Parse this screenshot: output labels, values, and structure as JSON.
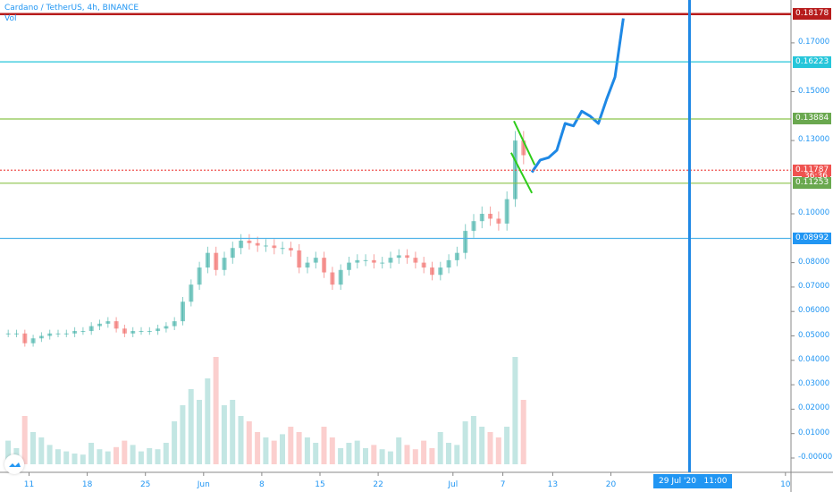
{
  "header": {
    "symbol_title": "Cardano / TetherUS, 4h, BINANCE",
    "volume_label": "Vol"
  },
  "colors": {
    "up": "#26a69a",
    "down": "#ef5350",
    "accent": "#2196f3",
    "resistance_top": "#b71c1c",
    "cyan_line": "#26c6da",
    "green_line": "#8bc34a",
    "support_blue": "#4fb3e8",
    "flag": "#2ecc1a",
    "drawn_path": "#1e88e5"
  },
  "chart_data": {
    "type": "candlestick",
    "title": "Cardano / TetherUS, 4h, BINANCE",
    "start_date": "2020-05-08",
    "daily_close": [
      0.051,
      0.051,
      0.047,
      0.049,
      0.05,
      0.051,
      0.051,
      0.051,
      0.052,
      0.052,
      0.054,
      0.055,
      0.056,
      0.053,
      0.051,
      0.052,
      0.052,
      0.052,
      0.053,
      0.054,
      0.056,
      0.064,
      0.071,
      0.078,
      0.084,
      0.077,
      0.082,
      0.086,
      0.089,
      0.088,
      0.087,
      0.087,
      0.086,
      0.086,
      0.085,
      0.078,
      0.08,
      0.082,
      0.076,
      0.071,
      0.077,
      0.08,
      0.081,
      0.081,
      0.08,
      0.08,
      0.082,
      0.083,
      0.082,
      0.08,
      0.078,
      0.075,
      0.078,
      0.081,
      0.084,
      0.093,
      0.097,
      0.1,
      0.098,
      0.096,
      0.106,
      0.13,
      0.124
    ],
    "drawn_path_start": "2020-07-10",
    "drawn_path": [
      0.117,
      0.122,
      0.123,
      0.126,
      0.137,
      0.136,
      0.142,
      0.14,
      0.137,
      0.147,
      0.156,
      0.18
    ],
    "volume_relative": [
      22,
      15,
      45,
      30,
      25,
      18,
      14,
      12,
      10,
      9,
      20,
      14,
      12,
      16,
      22,
      18,
      12,
      15,
      14,
      20,
      40,
      55,
      70,
      60,
      80,
      100,
      55,
      60,
      45,
      40,
      30,
      25,
      22,
      28,
      35,
      30,
      25,
      20,
      35,
      25,
      15,
      20,
      22,
      15,
      18,
      14,
      12,
      25,
      18,
      14,
      22,
      15,
      30,
      20,
      18,
      40,
      45,
      35,
      30,
      25,
      35,
      100,
      60
    ],
    "hlines": [
      {
        "price": 0.18178,
        "label": "0.18178",
        "style": "solid",
        "color": "#b71c1c",
        "badge": "#b71c1c"
      },
      {
        "price": 0.16223,
        "label": "0.16223",
        "style": "solid",
        "color": "#26c6da",
        "badge": "#26c6da"
      },
      {
        "price": 0.13884,
        "label": "0.13884",
        "style": "solid",
        "color": "#8bc34a",
        "badge": "#6aa84f"
      },
      {
        "price": 0.11787,
        "label": "0.11787",
        "style": "dotted",
        "color": "#ef5350",
        "badge": "#ef5350"
      },
      {
        "price": 0.11253,
        "label": "0.11253",
        "style": "solid",
        "color": "#8bc34a",
        "badge": "#6aa84f"
      },
      {
        "price": 0.08992,
        "label": "0.08992",
        "style": "solid",
        "color": "#4fb3e8",
        "badge": "#2196f3"
      }
    ],
    "countdown": "36:36",
    "flag_lines": [
      {
        "from": [
          "2020-07-08T08:00",
          0.138
        ],
        "to": [
          "2020-07-10T20:00",
          0.12
        ]
      },
      {
        "from": [
          "2020-07-08T00:00",
          0.125
        ],
        "to": [
          "2020-07-10T12:00",
          0.1085
        ]
      }
    ],
    "vertical_line": {
      "date": "2020-07-29T11:00",
      "label": "29 Jul '20   11:00"
    },
    "y_ticks": [
      "0.17000",
      "0.15000",
      "0.13000",
      "0.10000",
      "0.08000",
      "0.07000",
      "0.06000",
      "0.05000",
      "0.04000",
      "0.03000",
      "0.02000",
      "0.01000",
      "-0.00000"
    ],
    "x_ticks": [
      {
        "label": "11",
        "date": "2020-05-11"
      },
      {
        "label": "18",
        "date": "2020-05-18"
      },
      {
        "label": "25",
        "date": "2020-05-25"
      },
      {
        "label": "Jun",
        "date": "2020-06-01"
      },
      {
        "label": "8",
        "date": "2020-06-08"
      },
      {
        "label": "15",
        "date": "2020-06-15"
      },
      {
        "label": "22",
        "date": "2020-06-22"
      },
      {
        "label": "Jul",
        "date": "2020-07-01"
      },
      {
        "label": "7",
        "date": "2020-07-07"
      },
      {
        "label": "13",
        "date": "2020-07-13"
      },
      {
        "label": "20",
        "date": "2020-07-20"
      },
      {
        "label": "10",
        "date": "2020-08-10"
      }
    ]
  }
}
